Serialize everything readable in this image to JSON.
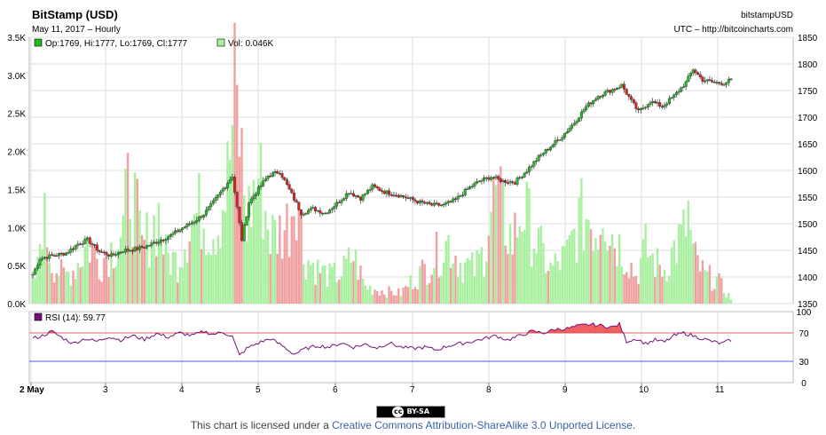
{
  "header": {
    "title": "BitStamp (USD)",
    "subtitle": "May 11, 2017 – Hourly",
    "symbol": "bitstampUSD",
    "source": "UTC – http://bitcoincharts.com"
  },
  "legend": {
    "ohlc": "Op:1769, Hi:1777, Lo:1769, Cl:1777",
    "volume": "Vol: 0.046K",
    "rsi": "RSI (14): 59.77"
  },
  "license": {
    "badge": "BY-SA",
    "badge_cc": "cc",
    "prefix": "This chart is licensed under a ",
    "link": "Creative Commons Attribution-ShareAlike 3.0 Unported License",
    "suffix": "."
  },
  "colors": {
    "up_candle": "#22bb22",
    "down_candle": "#dd2222",
    "up_volume": "#a8f0a0",
    "down_volume": "#f0a0a0",
    "rsi_line": "#771177",
    "rsi_overbought_fill": "#ee4444",
    "rsi_70_line": "#dd6666",
    "rsi_30_line": "#5555dd",
    "grid": "#dddddd"
  },
  "chart_data": {
    "type": "candlestick",
    "interval": "hourly",
    "price_axis": {
      "side": "right",
      "range": [
        1350,
        1850
      ],
      "ticks": [
        1350,
        1400,
        1450,
        1500,
        1550,
        1600,
        1650,
        1700,
        1750,
        1800,
        1850
      ]
    },
    "volume_axis": {
      "side": "left",
      "range": [
        0,
        3500
      ],
      "ticks": [
        "0.0K",
        "0.5K",
        "1.0K",
        "1.5K",
        "2.0K",
        "2.5K",
        "3.0K",
        "3.5K"
      ]
    },
    "rsi_axis": {
      "side": "right",
      "range": [
        0,
        100
      ],
      "ticks": [
        0,
        30,
        70,
        100
      ],
      "period": 14
    },
    "x_labels": [
      "2 May",
      "3",
      "4",
      "5",
      "6",
      "7",
      "8",
      "9",
      "10",
      "11"
    ],
    "grid": true,
    "price_anchors": [
      [
        0,
        1405
      ],
      [
        3,
        1435
      ],
      [
        8,
        1440
      ],
      [
        14,
        1445
      ],
      [
        19,
        1462
      ],
      [
        23,
        1470
      ],
      [
        28,
        1448
      ],
      [
        33,
        1440
      ],
      [
        38,
        1450
      ],
      [
        43,
        1452
      ],
      [
        48,
        1458
      ],
      [
        53,
        1468
      ],
      [
        58,
        1478
      ],
      [
        63,
        1492
      ],
      [
        68,
        1505
      ],
      [
        72,
        1518
      ],
      [
        76,
        1540
      ],
      [
        80,
        1565
      ],
      [
        84,
        1590
      ],
      [
        88,
        1470
      ],
      [
        91,
        1540
      ],
      [
        95,
        1565
      ],
      [
        99,
        1590
      ],
      [
        104,
        1598
      ],
      [
        109,
        1555
      ],
      [
        113,
        1520
      ],
      [
        118,
        1528
      ],
      [
        123,
        1520
      ],
      [
        128,
        1538
      ],
      [
        133,
        1560
      ],
      [
        138,
        1548
      ],
      [
        143,
        1570
      ],
      [
        148,
        1560
      ],
      [
        153,
        1555
      ],
      [
        158,
        1548
      ],
      [
        163,
        1540
      ],
      [
        168,
        1535
      ],
      [
        173,
        1535
      ],
      [
        178,
        1545
      ],
      [
        183,
        1565
      ],
      [
        188,
        1580
      ],
      [
        193,
        1588
      ],
      [
        198,
        1580
      ],
      [
        203,
        1578
      ],
      [
        208,
        1600
      ],
      [
        213,
        1625
      ],
      [
        218,
        1645
      ],
      [
        223,
        1665
      ],
      [
        228,
        1690
      ],
      [
        233,
        1720
      ],
      [
        238,
        1740
      ],
      [
        243,
        1750
      ],
      [
        248,
        1760
      ],
      [
        252,
        1730
      ],
      [
        255,
        1710
      ],
      [
        260,
        1730
      ],
      [
        265,
        1720
      ],
      [
        270,
        1740
      ],
      [
        275,
        1765
      ],
      [
        278,
        1790
      ],
      [
        282,
        1770
      ],
      [
        287,
        1765
      ],
      [
        291,
        1764
      ],
      [
        294,
        1770
      ]
    ],
    "volume_anchors": [
      [
        0,
        280
      ],
      [
        2,
        500
      ],
      [
        4,
        1350
      ],
      [
        8,
        600
      ],
      [
        13,
        400
      ],
      [
        17,
        500
      ],
      [
        20,
        650
      ],
      [
        23,
        900
      ],
      [
        28,
        600
      ],
      [
        33,
        800
      ],
      [
        38,
        1100
      ],
      [
        41,
        1850
      ],
      [
        46,
        800
      ],
      [
        53,
        1300
      ],
      [
        56,
        700
      ],
      [
        61,
        600
      ],
      [
        66,
        1200
      ],
      [
        71,
        1350
      ],
      [
        75,
        1100
      ],
      [
        78,
        1200
      ],
      [
        82,
        1800
      ],
      [
        85,
        2950
      ],
      [
        87,
        2500
      ],
      [
        90,
        1200
      ],
      [
        95,
        1900
      ],
      [
        100,
        1000
      ],
      [
        104,
        1050
      ],
      [
        108,
        1200
      ],
      [
        111,
        1850
      ],
      [
        114,
        700
      ],
      [
        120,
        500
      ],
      [
        125,
        400
      ],
      [
        130,
        450
      ],
      [
        135,
        700
      ],
      [
        140,
        250
      ],
      [
        148,
        180
      ],
      [
        155,
        150
      ],
      [
        160,
        350
      ],
      [
        165,
        500
      ],
      [
        170,
        700
      ],
      [
        175,
        900
      ],
      [
        180,
        600
      ],
      [
        186,
        500
      ],
      [
        190,
        750
      ],
      [
        192,
        1200
      ],
      [
        195,
        1600
      ],
      [
        198,
        1250
      ],
      [
        202,
        900
      ],
      [
        206,
        1400
      ],
      [
        208,
        1250
      ],
      [
        212,
        900
      ],
      [
        218,
        500
      ],
      [
        225,
        700
      ],
      [
        230,
        1200
      ],
      [
        234,
        1300
      ],
      [
        238,
        1050
      ],
      [
        240,
        1650
      ],
      [
        242,
        1150
      ],
      [
        246,
        900
      ],
      [
        250,
        700
      ],
      [
        254,
        400
      ],
      [
        258,
        800
      ],
      [
        262,
        600
      ],
      [
        266,
        500
      ],
      [
        270,
        800
      ],
      [
        274,
        1000
      ],
      [
        276,
        1300
      ],
      [
        278,
        700
      ],
      [
        283,
        400
      ],
      [
        288,
        350
      ],
      [
        291,
        200
      ],
      [
        294,
        80
      ]
    ],
    "rsi_anchors": [
      [
        0,
        62
      ],
      [
        4,
        66
      ],
      [
        8,
        72
      ],
      [
        12,
        64
      ],
      [
        17,
        55
      ],
      [
        22,
        62
      ],
      [
        27,
        58
      ],
      [
        32,
        65
      ],
      [
        37,
        60
      ],
      [
        42,
        66
      ],
      [
        47,
        61
      ],
      [
        52,
        69
      ],
      [
        57,
        64
      ],
      [
        62,
        70
      ],
      [
        67,
        66
      ],
      [
        72,
        72
      ],
      [
        76,
        68
      ],
      [
        80,
        71
      ],
      [
        84,
        65
      ],
      [
        87,
        38
      ],
      [
        90,
        48
      ],
      [
        95,
        56
      ],
      [
        100,
        62
      ],
      [
        105,
        52
      ],
      [
        110,
        40
      ],
      [
        115,
        48
      ],
      [
        120,
        52
      ],
      [
        125,
        50
      ],
      [
        130,
        56
      ],
      [
        135,
        50
      ],
      [
        140,
        54
      ],
      [
        145,
        49
      ],
      [
        150,
        56
      ],
      [
        155,
        50
      ],
      [
        160,
        48
      ],
      [
        165,
        50
      ],
      [
        170,
        46
      ],
      [
        175,
        52
      ],
      [
        180,
        55
      ],
      [
        185,
        58
      ],
      [
        190,
        62
      ],
      [
        195,
        66
      ],
      [
        200,
        60
      ],
      [
        205,
        66
      ],
      [
        210,
        72
      ],
      [
        215,
        70
      ],
      [
        220,
        75
      ],
      [
        225,
        76
      ],
      [
        230,
        80
      ],
      [
        235,
        82
      ],
      [
        240,
        80
      ],
      [
        244,
        78
      ],
      [
        247,
        82
      ],
      [
        250,
        58
      ],
      [
        254,
        62
      ],
      [
        258,
        55
      ],
      [
        262,
        60
      ],
      [
        266,
        57
      ],
      [
        270,
        66
      ],
      [
        274,
        70
      ],
      [
        278,
        66
      ],
      [
        282,
        62
      ],
      [
        286,
        58
      ],
      [
        290,
        55
      ],
      [
        294,
        60
      ]
    ]
  }
}
